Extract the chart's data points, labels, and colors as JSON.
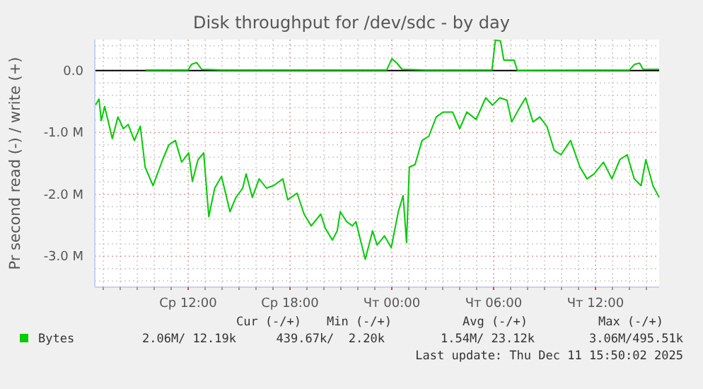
{
  "chart_data": {
    "type": "line",
    "title": "Disk throughput for /dev/sdc - by day",
    "ylabel": "Pr second read (-) / write (+)",
    "xlim": [
      "2025-12-10T06:30",
      "2025-12-11T15:45"
    ],
    "ylim": [
      -3.5,
      0.5
    ],
    "xticks": [
      {
        "value": "2025-12-10T07:00",
        "label": null
      },
      {
        "value": "2025-12-10T08:00",
        "label": null
      },
      {
        "value": "2025-12-10T09:00",
        "label": null
      },
      {
        "value": "2025-12-10T10:00",
        "label": null
      },
      {
        "value": "2025-12-10T11:00",
        "label": null
      },
      {
        "value": "2025-12-10T12:00",
        "label": "Ср 12:00"
      },
      {
        "value": "2025-12-10T13:00",
        "label": null
      },
      {
        "value": "2025-12-10T14:00",
        "label": null
      },
      {
        "value": "2025-12-10T15:00",
        "label": null
      },
      {
        "value": "2025-12-10T16:00",
        "label": null
      },
      {
        "value": "2025-12-10T17:00",
        "label": null
      },
      {
        "value": "2025-12-10T18:00",
        "label": "Ср 18:00"
      },
      {
        "value": "2025-12-10T19:00",
        "label": null
      },
      {
        "value": "2025-12-10T20:00",
        "label": null
      },
      {
        "value": "2025-12-10T21:00",
        "label": null
      },
      {
        "value": "2025-12-10T22:00",
        "label": null
      },
      {
        "value": "2025-12-10T23:00",
        "label": null
      },
      {
        "value": "2025-12-11T00:00",
        "label": "Чт 00:00"
      },
      {
        "value": "2025-12-11T01:00",
        "label": null
      },
      {
        "value": "2025-12-11T02:00",
        "label": null
      },
      {
        "value": "2025-12-11T03:00",
        "label": null
      },
      {
        "value": "2025-12-11T04:00",
        "label": null
      },
      {
        "value": "2025-12-11T05:00",
        "label": null
      },
      {
        "value": "2025-12-11T06:00",
        "label": "Чт 06:00"
      },
      {
        "value": "2025-12-11T07:00",
        "label": null
      },
      {
        "value": "2025-12-11T08:00",
        "label": null
      },
      {
        "value": "2025-12-11T09:00",
        "label": null
      },
      {
        "value": "2025-12-11T10:00",
        "label": null
      },
      {
        "value": "2025-12-11T11:00",
        "label": null
      },
      {
        "value": "2025-12-11T12:00",
        "label": "Чт 12:00"
      },
      {
        "value": "2025-12-11T13:00",
        "label": null
      },
      {
        "value": "2025-12-11T14:00",
        "label": null
      },
      {
        "value": "2025-12-11T15:00",
        "label": null
      }
    ],
    "yticks": [
      {
        "value": -3.4,
        "label": null
      },
      {
        "value": -3.2,
        "label": null
      },
      {
        "value": -3,
        "label": "-3.0 M"
      },
      {
        "value": -2.8,
        "label": null
      },
      {
        "value": -2.6,
        "label": null
      },
      {
        "value": -2.4,
        "label": null
      },
      {
        "value": -2.2,
        "label": null
      },
      {
        "value": -2,
        "label": "-2.0 M"
      },
      {
        "value": -1.8,
        "label": null
      },
      {
        "value": -1.6,
        "label": null
      },
      {
        "value": -1.4,
        "label": null
      },
      {
        "value": -1.2,
        "label": null
      },
      {
        "value": -1,
        "label": "-1.0 M"
      },
      {
        "value": -0.8,
        "label": null
      },
      {
        "value": -0.6,
        "label": null
      },
      {
        "value": -0.4,
        "label": null
      },
      {
        "value": -0.2,
        "label": null
      },
      {
        "value": 0,
        "label": "0.0"
      },
      {
        "value": 0.2,
        "label": null
      },
      {
        "value": 0.4,
        "label": null
      }
    ],
    "grid": true,
    "legend": "bottom left",
    "line_style": "solid",
    "ref_lines": [
      {
        "axis": "y",
        "value": 0,
        "color": "#000000"
      }
    ],
    "series": [
      {
        "name": "Bytes",
        "color": "#00cc00",
        "x": [
          "2025-12-10T06:32",
          "2025-12-10T06:45",
          "2025-12-10T06:53",
          "2025-12-10T07:05",
          "2025-12-10T07:32",
          "2025-12-10T07:52",
          "2025-12-10T08:11",
          "2025-12-10T08:28",
          "2025-12-10T08:50",
          "2025-12-10T09:11",
          "2025-12-10T09:28",
          "2025-12-10T09:56",
          "2025-12-10T10:30",
          "2025-12-10T10:52",
          "2025-12-10T11:15",
          "2025-12-10T11:37",
          "2025-12-10T12:02",
          "2025-12-10T12:15",
          "2025-12-10T12:35",
          "2025-12-10T12:55",
          "2025-12-10T13:13",
          "2025-12-10T13:34",
          "2025-12-10T13:58",
          "2025-12-10T14:28",
          "2025-12-10T14:49",
          "2025-12-10T15:13",
          "2025-12-10T15:25",
          "2025-12-10T15:47",
          "2025-12-10T16:11",
          "2025-12-10T16:37",
          "2025-12-10T17:02",
          "2025-12-10T17:35",
          "2025-12-10T17:52",
          "2025-12-10T18:25",
          "2025-12-10T18:50",
          "2025-12-10T19:15",
          "2025-12-10T19:49",
          "2025-12-10T20:05",
          "2025-12-10T20:30",
          "2025-12-10T20:47",
          "2025-12-10T20:58",
          "2025-12-10T21:20",
          "2025-12-10T21:41",
          "2025-12-10T21:53",
          "2025-12-10T22:26",
          "2025-12-10T22:52",
          "2025-12-10T23:08",
          "2025-12-10T23:34",
          "2025-12-10T23:58",
          "2025-12-11T00:23",
          "2025-12-11T00:40",
          "2025-12-11T00:52",
          "2025-12-11T01:02",
          "2025-12-11T01:22",
          "2025-12-11T01:47",
          "2025-12-11T02:11",
          "2025-12-11T02:37",
          "2025-12-11T03:02",
          "2025-12-11T03:35",
          "2025-12-11T04:00",
          "2025-12-11T04:25",
          "2025-12-11T04:58",
          "2025-12-11T05:32",
          "2025-12-11T05:56",
          "2025-12-11T06:22",
          "2025-12-11T06:47",
          "2025-12-11T07:04",
          "2025-12-11T07:28",
          "2025-12-11T07:53",
          "2025-12-11T08:19",
          "2025-12-11T08:43",
          "2025-12-11T09:08",
          "2025-12-11T09:34",
          "2025-12-11T09:58",
          "2025-12-11T10:32",
          "2025-12-11T11:05",
          "2025-12-11T11:30",
          "2025-12-11T11:55",
          "2025-12-11T12:28",
          "2025-12-11T12:58",
          "2025-12-11T13:26",
          "2025-12-11T13:52",
          "2025-12-11T14:17",
          "2025-12-11T14:41",
          "2025-12-11T14:58",
          "2025-12-11T15:23",
          "2025-12-11T15:45"
        ],
        "values": [
          -0.56,
          -0.46,
          -0.81,
          -0.58,
          -1.1,
          -0.75,
          -0.94,
          -0.87,
          -1.13,
          -0.9,
          -1.56,
          -1.86,
          -1.44,
          -1.2,
          -1.13,
          -1.48,
          -1.33,
          -1.79,
          -1.44,
          -1.33,
          -2.36,
          -1.9,
          -1.71,
          -2.28,
          -2.05,
          -1.9,
          -1.67,
          -2.05,
          -1.75,
          -1.9,
          -1.86,
          -1.75,
          -2.09,
          -1.98,
          -2.32,
          -2.51,
          -2.32,
          -2.55,
          -2.74,
          -2.59,
          -2.28,
          -2.44,
          -2.51,
          -2.44,
          -3.05,
          -2.59,
          -2.82,
          -2.67,
          -2.86,
          -2.28,
          -2.02,
          -2.78,
          -1.56,
          -1.52,
          -1.13,
          -1.06,
          -0.75,
          -0.67,
          -0.67,
          -0.94,
          -0.67,
          -0.79,
          -0.44,
          -0.56,
          -0.44,
          -0.48,
          -0.83,
          -0.63,
          -0.44,
          -0.83,
          -0.75,
          -0.9,
          -1.29,
          -1.36,
          -1.13,
          -1.56,
          -1.75,
          -1.67,
          -1.48,
          -1.75,
          -1.44,
          -1.36,
          -1.75,
          -1.86,
          -1.44,
          -1.86,
          -2.05
        ]
      },
      {
        "color": "#00cc00",
        "x": [
          "2025-12-10T09:30",
          "2025-12-10T12:00",
          "2025-12-10T12:12",
          "2025-12-10T12:30",
          "2025-12-10T12:48",
          "2025-12-10T14:00",
          "2025-12-10T23:42",
          "2025-12-11T00:00",
          "2025-12-11T00:18",
          "2025-12-11T00:36",
          "2025-12-11T02:00",
          "2025-12-11T05:54",
          "2025-12-11T06:06",
          "2025-12-11T06:24",
          "2025-12-11T06:36",
          "2025-12-11T07:12",
          "2025-12-11T07:24",
          "2025-12-11T14:00",
          "2025-12-11T14:18",
          "2025-12-11T14:36",
          "2025-12-11T14:48",
          "2025-12-11T15:45"
        ],
        "values": [
          0.01,
          0.01,
          0.1,
          0.13,
          0.02,
          0.01,
          0.01,
          0.19,
          0.12,
          0.02,
          0.01,
          0.01,
          0.49,
          0.48,
          0.17,
          0.17,
          0,
          0.01,
          0.1,
          0.12,
          0.02,
          0.02
        ]
      }
    ],
    "annotations": [
      "Cur (-/+)",
      "Min (-/+)",
      "Avg (-/+)",
      "Max (-/+)",
      "2.06M/ 12.19k",
      "439.67k/  2.20k",
      "1.54M/ 23.12k",
      "3.06M/495.51k",
      "Last update: Thu Dec 11 15:50:02 2025"
    ]
  }
}
